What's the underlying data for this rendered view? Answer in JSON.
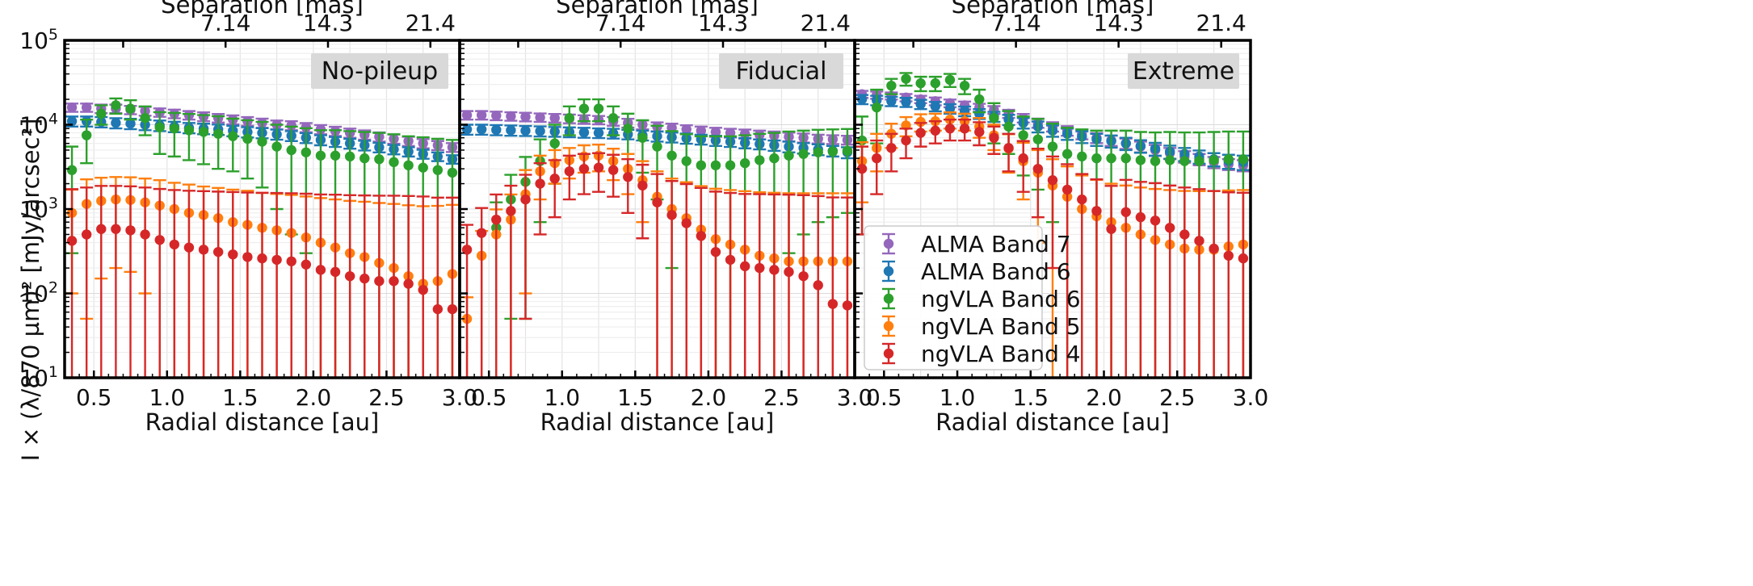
{
  "chart_data": {
    "type": "scatter",
    "ylabel": "I × (λ/870 µm)² [mJy/arcsec²]",
    "xlabel": "Radial distance [au]",
    "top_axis_label": "Separation [mas]",
    "top_ticks": [
      "7.14",
      "14.3",
      "21.4"
    ],
    "x_ticks": [
      "0.5",
      "1.0",
      "1.5",
      "2.0",
      "2.5",
      "3.0"
    ],
    "xlim": [
      0.3,
      3.0
    ],
    "ylim_log10": [
      1,
      5
    ],
    "y_ticks": [
      {
        "base": "10",
        "exp": "1"
      },
      {
        "base": "10",
        "exp": "2"
      },
      {
        "base": "10",
        "exp": "3"
      },
      {
        "base": "10",
        "exp": "4"
      },
      {
        "base": "10",
        "exp": "5"
      }
    ],
    "x": [
      0.35,
      0.45,
      0.55,
      0.65,
      0.75,
      0.85,
      0.95,
      1.05,
      1.15,
      1.25,
      1.35,
      1.45,
      1.55,
      1.65,
      1.75,
      1.85,
      1.95,
      2.05,
      2.15,
      2.25,
      2.35,
      2.45,
      2.55,
      2.65,
      2.75,
      2.85,
      2.95
    ],
    "legend": [
      "ALMA Band 7",
      "ALMA Band 6",
      "ngVLA Band 6",
      "ngVLA Band 5",
      "ngVLA Band 4"
    ],
    "colors": {
      "ALMA Band 7": "#9467bd",
      "ALMA Band 6": "#1f77b4",
      "ngVLA Band 6": "#2ca02c",
      "ngVLA Band 5": "#ff7f0e",
      "ngVLA Band 4": "#d62728"
    },
    "panels": [
      {
        "label": "No-pileup",
        "series": [
          {
            "name": "ALMA Band 7",
            "y": [
              16000,
              16000,
              15500,
              15500,
              15000,
              14500,
              14000,
              13500,
              13000,
              12500,
              12000,
              11500,
              11000,
              10500,
              10000,
              9800,
              9300,
              8800,
              8400,
              8000,
              7600,
              7200,
              6800,
              6400,
              6000,
              5700,
              5400
            ],
            "err": [
              1800,
              1800,
              1800,
              1800,
              1700,
              1700,
              1600,
              1600,
              1500,
              1500,
              1400,
              1400,
              1300,
              1300,
              1200,
              1200,
              1150,
              1100,
              1050,
              1000,
              950,
              900,
              850,
              800,
              750,
              700,
              650
            ]
          },
          {
            "name": "ALMA Band 6",
            "y": [
              11000,
              11000,
              10800,
              10500,
              10300,
              10000,
              9800,
              9500,
              9200,
              9000,
              8800,
              8500,
              8200,
              8000,
              7700,
              7400,
              7000,
              6600,
              6300,
              6000,
              5700,
              5400,
              5100,
              4800,
              4500,
              4200,
              3900
            ],
            "err": [
              1500,
              1500,
              1500,
              1450,
              1450,
              1400,
              1400,
              1350,
              1300,
              1300,
              1250,
              1200,
              1150,
              1100,
              1050,
              1000,
              950,
              900,
              850,
              800,
              750,
              700,
              650,
              600,
              550,
              500,
              450
            ]
          },
          {
            "name": "ngVLA Band 6",
            "y": [
              2900,
              7500,
              13500,
              17000,
              15500,
              12000,
              9300,
              9000,
              8600,
              8200,
              7800,
              7300,
              6800,
              6300,
              5500,
              5000,
              4700,
              4300,
              4300,
              4200,
              4000,
              3900,
              3600,
              3300,
              3100,
              2900,
              2700
            ],
            "err": [
              2600,
              4000,
              3500,
              3500,
              4000,
              4500,
              4800,
              4800,
              4800,
              4800,
              4800,
              4500,
              4500,
              4500,
              4500,
              4500,
              4400,
              4300,
              4300,
              4200,
              4200,
              4100,
              4100,
              4000,
              4000,
              3900,
              3900
            ]
          },
          {
            "name": "ngVLA Band 5",
            "y": [
              900,
              1150,
              1250,
              1300,
              1280,
              1200,
              1100,
              1000,
              900,
              850,
              780,
              700,
              650,
              600,
              560,
              520,
              460,
              400,
              350,
              300,
              270,
              230,
              200,
              160,
              130,
              140,
              170
            ],
            "err": [
              800,
              1100,
              1100,
              1100,
              1100,
              1100,
              1100,
              1050,
              1050,
              1000,
              1000,
              1000,
              1000,
              950,
              950,
              950,
              950,
              950,
              950,
              950,
              950,
              950,
              950,
              950,
              950,
              950,
              950
            ]
          },
          {
            "name": "ngVLA Band 4",
            "y": [
              420,
              500,
              580,
              580,
              560,
              500,
              430,
              380,
              350,
              330,
              310,
              290,
              270,
              260,
              250,
              240,
              220,
              190,
              180,
              160,
              150,
              140,
              140,
              130,
              110,
              65,
              65
            ],
            "err": [
              1300,
              1300,
              1300,
              1300,
              1300,
              1300,
              1300,
              1300,
              1300,
              1300,
              1300,
              1300,
              1300,
              1300,
              1300,
              1300,
              1300,
              1300,
              1300,
              1300,
              1300,
              1300,
              1300,
              1300,
              1300,
              1300,
              1300
            ]
          }
        ]
      },
      {
        "label": "Fiducial",
        "series": [
          {
            "name": "ALMA Band 7",
            "y": [
              13000,
              13000,
              12800,
              12600,
              12400,
              12200,
              12000,
              11800,
              11600,
              11400,
              11000,
              10500,
              10000,
              9500,
              9200,
              8800,
              8500,
              8200,
              8000,
              7800,
              7600,
              7400,
              7200,
              7000,
              6800,
              6700,
              6600
            ],
            "err": [
              1500,
              1500,
              1500,
              1450,
              1450,
              1400,
              1400,
              1400,
              1350,
              1300,
              1300,
              1250,
              1200,
              1150,
              1100,
              1050,
              1000,
              1000,
              950,
              950,
              900,
              900,
              850,
              850,
              800,
              800,
              800
            ]
          },
          {
            "name": "ALMA Band 6",
            "y": [
              8800,
              8800,
              8700,
              8600,
              8500,
              8400,
              8300,
              8200,
              8100,
              8000,
              7900,
              7700,
              7500,
              7300,
              7100,
              6900,
              6700,
              6500,
              6300,
              6100,
              5900,
              5700,
              5500,
              5300,
              5100,
              4900,
              4700
            ],
            "err": [
              1200,
              1200,
              1200,
              1200,
              1150,
              1150,
              1100,
              1100,
              1100,
              1050,
              1050,
              1000,
              1000,
              1000,
              950,
              950,
              900,
              900,
              850,
              850,
              800,
              800,
              800,
              750,
              750,
              700,
              700
            ]
          },
          {
            "name": "ngVLA Band 6",
            "y": [
              null,
              null,
              600,
              1300,
              2100,
              3700,
              6000,
              12000,
              15500,
              15500,
              12000,
              9000,
              7000,
              5500,
              4300,
              3700,
              3300,
              3300,
              3300,
              3500,
              3800,
              4000,
              4300,
              4500,
              4700,
              4800,
              4900
            ],
            "err": [
              0,
              0,
              600,
              1250,
              2050,
              3000,
              4000,
              4500,
              4500,
              4500,
              4500,
              4500,
              4300,
              4200,
              4100,
              4000,
              4000,
              4000,
              4000,
              4000,
              4000,
              4000,
              4000,
              4000,
              4000,
              4000,
              4000
            ]
          },
          {
            "name": "ngVLA Band 5",
            "y": [
              50,
              280,
              500,
              750,
              1500,
              2800,
              3500,
              3800,
              4200,
              4300,
              3700,
              3000,
              2200,
              1400,
              1000,
              780,
              570,
              440,
              380,
              330,
              280,
              260,
              240,
              240,
              240,
              240,
              240
            ],
            "err": [
              40,
              270,
              490,
              740,
              1400,
              1500,
              1500,
              1500,
              1500,
              1500,
              1500,
              1500,
              1500,
              1400,
              1300,
              1300,
              1300,
              1300,
              1300,
              1300,
              1300,
              1300,
              1300,
              1300,
              1300,
              1300,
              1300
            ]
          },
          {
            "name": "ngVLA Band 4",
            "y": [
              330,
              520,
              750,
              950,
              1300,
              2000,
              2300,
              2800,
              3000,
              3100,
              2900,
              2400,
              1900,
              1200,
              850,
              680,
              480,
              310,
              250,
              210,
              200,
              190,
              180,
              160,
              125,
              75,
              72
            ],
            "err": [
              320,
              510,
              740,
              940,
              1250,
              1500,
              1500,
              1500,
              1500,
              1500,
              1500,
              1500,
              1450,
              1400,
              1300,
              1300,
              1300,
              1300,
              1300,
              1300,
              1300,
              1300,
              1300,
              1300,
              1300,
              1300,
              1300
            ]
          }
        ]
      },
      {
        "label": "Extreme",
        "series": [
          {
            "name": "ALMA Band 7",
            "y": [
              23000,
              22500,
              22000,
              21000,
              20000,
              19000,
              18000,
              17000,
              16000,
              15000,
              13500,
              12000,
              10500,
              9500,
              8500,
              7700,
              7000,
              6500,
              6000,
              5500,
              5000,
              4600,
              4200,
              3900,
              3600,
              3400,
              3300
            ],
            "err": [
              2200,
              2200,
              2100,
              2100,
              2000,
              2000,
              1900,
              1800,
              1700,
              1600,
              1500,
              1400,
              1300,
              1200,
              1100,
              1000,
              950,
              900,
              850,
              800,
              750,
              700,
              650,
              600,
              550,
              500,
              500
            ]
          },
          {
            "name": "ALMA Band 6",
            "y": [
              20000,
              19500,
              19000,
              18500,
              17500,
              16500,
              15500,
              14500,
              13500,
              12500,
              11500,
              10500,
              9500,
              8500,
              7800,
              7200,
              6700,
              6400,
              6000,
              5600,
              5200,
              4800,
              4500,
              4200,
              3900,
              3700,
              3600
            ],
            "err": [
              2500,
              2500,
              2400,
              2300,
              2200,
              2100,
              2000,
              1900,
              1800,
              1700,
              1600,
              1500,
              1400,
              1300,
              1200,
              1150,
              1100,
              1050,
              1000,
              950,
              900,
              850,
              800,
              750,
              700,
              700,
              700
            ]
          },
          {
            "name": "ngVLA Band 6",
            "y": [
              6500,
              16000,
              29000,
              35000,
              31000,
              31000,
              34000,
              29000,
              20000,
              12000,
              9500,
              7500,
              6700,
              5500,
              4500,
              4200,
              4000,
              4000,
              4000,
              3800,
              3700,
              3800,
              3700,
              3700,
              3800,
              3900,
              3900
            ],
            "err": [
              6000,
              10000,
              6000,
              6000,
              6000,
              6000,
              6000,
              6000,
              6000,
              6000,
              5000,
              5000,
              5000,
              4800,
              4700,
              4600,
              4500,
              4500,
              4500,
              4400,
              4400,
              4400,
              4400,
              4400,
              4400,
              4400,
              4400
            ]
          },
          {
            "name": "ngVLA Band 5",
            "y": [
              3700,
              5300,
              7800,
              9800,
              10800,
              11000,
              11500,
              11000,
              9500,
              7500,
              5200,
              3700,
              2700,
              1900,
              1400,
              1000,
              820,
              700,
              600,
              500,
              430,
              380,
              340,
              330,
              330,
              360,
              380
            ],
            "err": [
              2500,
              2500,
              2500,
              2500,
              2500,
              2500,
              2500,
              2500,
              2500,
              2500,
              2500,
              2400,
              2300,
              2000,
              1800,
              1500,
              1400,
              1300,
              1300,
              1300,
              1300,
              1300,
              1300,
              1300,
              1300,
              1300,
              1300
            ]
          },
          {
            "name": "ngVLA Band 4",
            "y": [
              3000,
              4000,
              5300,
              6500,
              8000,
              8500,
              9000,
              9000,
              8200,
              7000,
              5300,
              4000,
              3000,
              2200,
              1700,
              1300,
              950,
              580,
              920,
              800,
              730,
              600,
              500,
              420,
              340,
              280,
              260
            ],
            "err": [
              2500,
              2500,
              2500,
              2500,
              2500,
              2500,
              2500,
              2500,
              2500,
              2500,
              2500,
              2400,
              2200,
              2000,
              1700,
              1300,
              1300,
              1300,
              1300,
              1300,
              1300,
              1300,
              1300,
              1300,
              1300,
              1300,
              1300
            ]
          }
        ]
      }
    ]
  }
}
